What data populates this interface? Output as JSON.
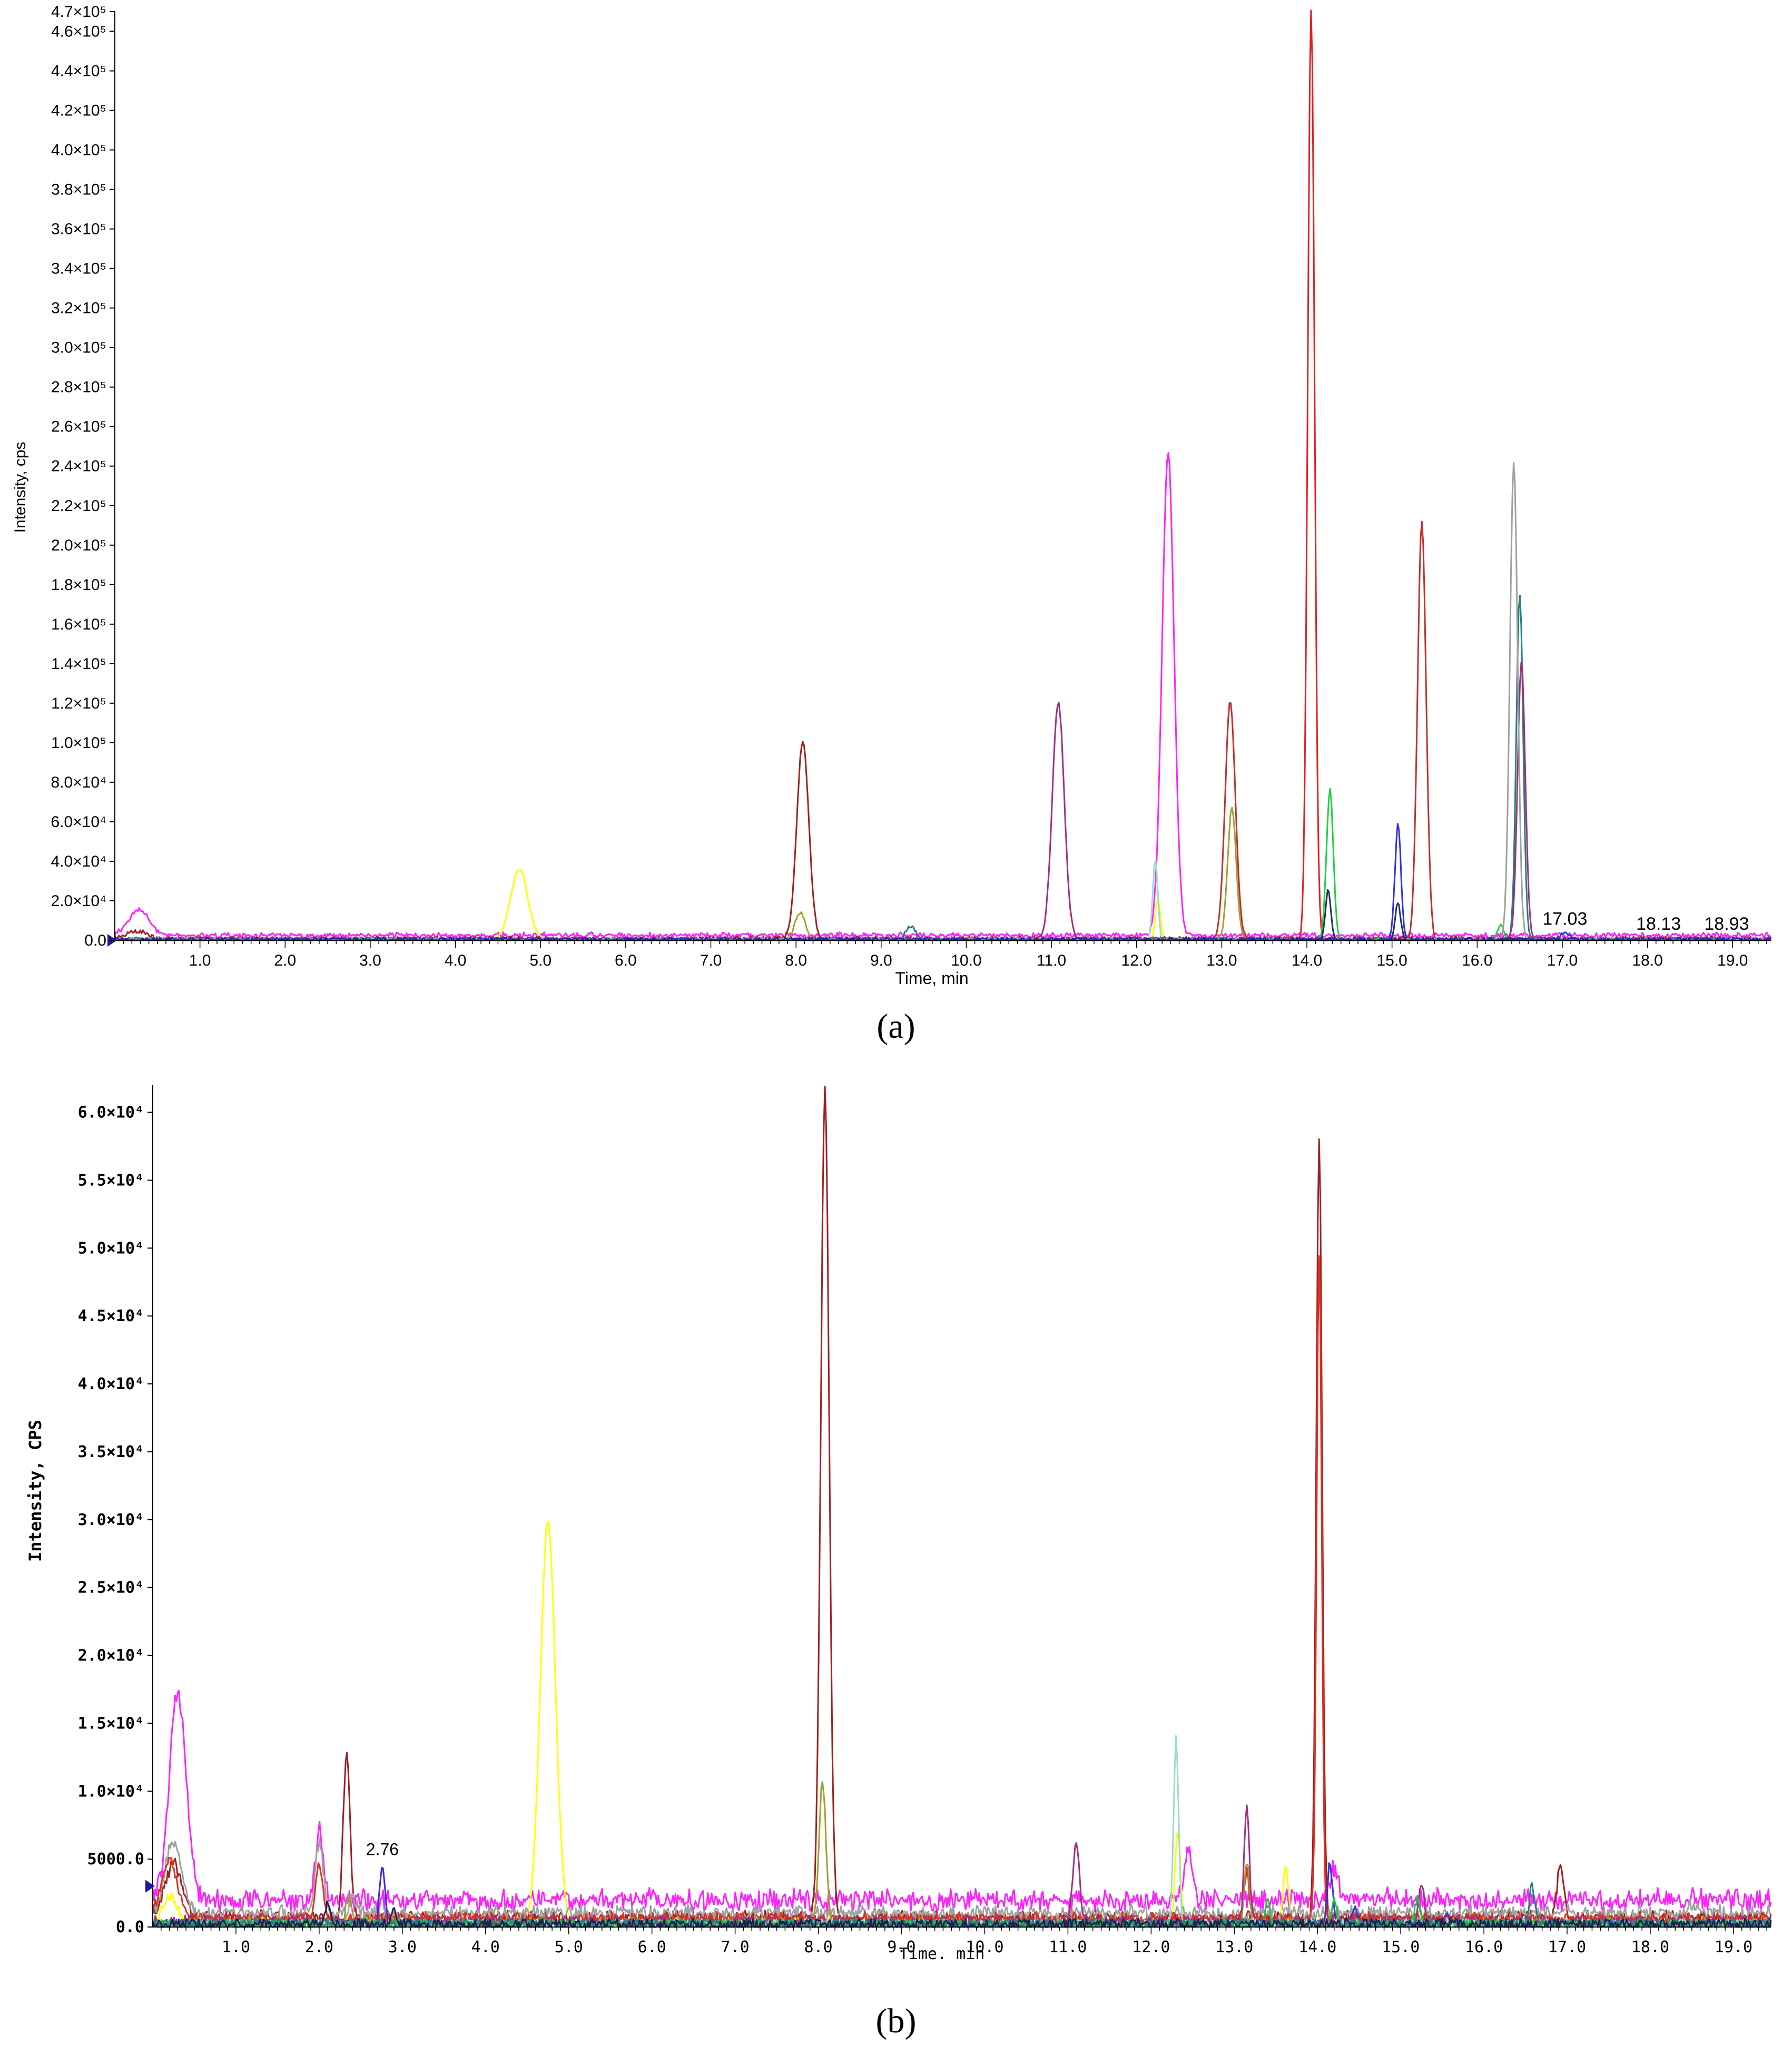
{
  "chart_data": [
    {
      "type": "line",
      "panel_label": "(a)",
      "xlabel": "Time, min",
      "ylabel": "Intensity, cps",
      "xlim": [
        0,
        19.45
      ],
      "ylim": [
        0,
        470000
      ],
      "x_ticks": [
        {
          "v": 1,
          "label": "1.0"
        },
        {
          "v": 2,
          "label": "2.0"
        },
        {
          "v": 3,
          "label": "3.0"
        },
        {
          "v": 4,
          "label": "4.0"
        },
        {
          "v": 5,
          "label": "5.0"
        },
        {
          "v": 6,
          "label": "6.0"
        },
        {
          "v": 7,
          "label": "7.0"
        },
        {
          "v": 8,
          "label": "8.0"
        },
        {
          "v": 9,
          "label": "9.0"
        },
        {
          "v": 10,
          "label": "10.0"
        },
        {
          "v": 11,
          "label": "11.0"
        },
        {
          "v": 12,
          "label": "12.0"
        },
        {
          "v": 13,
          "label": "13.0"
        },
        {
          "v": 14,
          "label": "14.0"
        },
        {
          "v": 15,
          "label": "15.0"
        },
        {
          "v": 16,
          "label": "16.0"
        },
        {
          "v": 17,
          "label": "17.0"
        },
        {
          "v": 18,
          "label": "18.0"
        },
        {
          "v": 19,
          "label": "19.0"
        }
      ],
      "y_ticks": [
        {
          "v": 0,
          "label": "0.0"
        },
        {
          "v": 20000,
          "label": "2.0×10⁴"
        },
        {
          "v": 40000,
          "label": "4.0×10⁴"
        },
        {
          "v": 60000,
          "label": "6.0×10⁴"
        },
        {
          "v": 80000,
          "label": "8.0×10⁴"
        },
        {
          "v": 100000,
          "label": "1.0×10⁵"
        },
        {
          "v": 120000,
          "label": "1.2×10⁵"
        },
        {
          "v": 140000,
          "label": "1.4×10⁵"
        },
        {
          "v": 160000,
          "label": "1.6×10⁵"
        },
        {
          "v": 180000,
          "label": "1.8×10⁵"
        },
        {
          "v": 200000,
          "label": "2.0×10⁵"
        },
        {
          "v": 220000,
          "label": "2.2×10⁵"
        },
        {
          "v": 240000,
          "label": "2.4×10⁵"
        },
        {
          "v": 260000,
          "label": "2.6×10⁵"
        },
        {
          "v": 280000,
          "label": "2.8×10⁵"
        },
        {
          "v": 300000,
          "label": "3.0×10⁵"
        },
        {
          "v": 320000,
          "label": "3.2×10⁵"
        },
        {
          "v": 340000,
          "label": "3.4×10⁵"
        },
        {
          "v": 360000,
          "label": "3.6×10⁵"
        },
        {
          "v": 380000,
          "label": "3.8×10⁵"
        },
        {
          "v": 400000,
          "label": "4.0×10⁵"
        },
        {
          "v": 420000,
          "label": "4.2×10⁵"
        },
        {
          "v": 440000,
          "label": "4.4×10⁵"
        },
        {
          "v": 460000,
          "label": "4.6×10⁵"
        },
        {
          "v": 470000,
          "label": "4.7×10⁵"
        }
      ],
      "annotations": [
        {
          "x": 17.03,
          "y": 3000,
          "text": "17.03"
        },
        {
          "x": 18.13,
          "y": 500,
          "text": "18.13"
        },
        {
          "x": 18.93,
          "y": 500,
          "text": "18.93"
        }
      ],
      "series": [
        {
          "color": "#ff22ff",
          "baseline": 2500,
          "peaks": [
            [
              0.28,
              13000,
              0.12
            ],
            [
              12.37,
              245000,
              0.07
            ]
          ]
        },
        {
          "color": "#ffff00",
          "baseline": 200,
          "peaks": [
            [
              4.75,
              36000,
              0.1
            ],
            [
              12.25,
              21000,
              0.03
            ]
          ]
        },
        {
          "color": "#a02020",
          "baseline": 800,
          "peaks": [
            [
              0.25,
              4000,
              0.12
            ],
            [
              8.08,
              100000,
              0.07
            ]
          ]
        },
        {
          "color": "#a0a030",
          "baseline": 300,
          "peaks": [
            [
              8.05,
              14000,
              0.06
            ],
            [
              13.12,
              67000,
              0.05
            ]
          ]
        },
        {
          "color": "#208080",
          "baseline": 200,
          "peaks": [
            [
              9.35,
              7000,
              0.06
            ],
            [
              16.5,
              175000,
              0.04
            ]
          ]
        },
        {
          "color": "#a03080",
          "baseline": 500,
          "peaks": [
            [
              11.08,
              120000,
              0.07
            ],
            [
              16.52,
              140000,
              0.045
            ]
          ]
        },
        {
          "color": "#a0d8d0",
          "baseline": 200,
          "peaks": [
            [
              12.22,
              40000,
              0.03
            ]
          ]
        },
        {
          "color": "#c03030",
          "baseline": 500,
          "peaks": [
            [
              13.1,
              120000,
              0.06
            ],
            [
              15.35,
              211000,
              0.05
            ]
          ]
        },
        {
          "color": "#e02020",
          "baseline": 300,
          "peaks": [
            [
              14.05,
              470000,
              0.04
            ]
          ]
        },
        {
          "color": "#20d040",
          "baseline": 200,
          "peaks": [
            [
              14.27,
              76000,
              0.04
            ],
            [
              16.28,
              7000,
              0.04
            ]
          ]
        },
        {
          "color": "#203060",
          "baseline": 200,
          "peaks": [
            [
              14.25,
              26000,
              0.03
            ],
            [
              15.07,
              19000,
              0.03
            ]
          ]
        },
        {
          "color": "#3030e0",
          "baseline": 200,
          "peaks": [
            [
              15.07,
              59000,
              0.035
            ],
            [
              17.03,
              4000,
              0.05
            ]
          ]
        },
        {
          "color": "#a0a0a0",
          "baseline": 200,
          "peaks": [
            [
              16.43,
              242000,
              0.045
            ]
          ]
        },
        {
          "color": "#2020a0",
          "baseline": 300,
          "peaks": []
        }
      ]
    },
    {
      "type": "line",
      "panel_label": "(b)",
      "xlabel": "Time. min",
      "ylabel": "Intensity, CPS",
      "xlim": [
        0,
        19.45
      ],
      "ylim": [
        0,
        62000
      ],
      "x_ticks": [
        {
          "v": 1,
          "label": "1.0"
        },
        {
          "v": 2,
          "label": "2.0"
        },
        {
          "v": 3,
          "label": "3.0"
        },
        {
          "v": 4,
          "label": "4.0"
        },
        {
          "v": 5,
          "label": "5.0"
        },
        {
          "v": 6,
          "label": "6.0"
        },
        {
          "v": 7,
          "label": "7.0"
        },
        {
          "v": 8,
          "label": "8.0"
        },
        {
          "v": 9,
          "label": "9.0"
        },
        {
          "v": 10,
          "label": "10.0"
        },
        {
          "v": 11,
          "label": "11.0"
        },
        {
          "v": 12,
          "label": "12.0"
        },
        {
          "v": 13,
          "label": "13.0"
        },
        {
          "v": 14,
          "label": "14.0"
        },
        {
          "v": 15,
          "label": "15.0"
        },
        {
          "v": 16,
          "label": "16.0"
        },
        {
          "v": 17,
          "label": "17.0"
        },
        {
          "v": 18,
          "label": "18.0"
        },
        {
          "v": 19,
          "label": "19.0"
        }
      ],
      "y_ticks": [
        {
          "v": 0,
          "label": "0.0"
        },
        {
          "v": 5000,
          "label": "5000.0"
        },
        {
          "v": 10000,
          "label": "1.0×10⁴"
        },
        {
          "v": 15000,
          "label": "1.5×10⁴"
        },
        {
          "v": 20000,
          "label": "2.0×10⁴"
        },
        {
          "v": 25000,
          "label": "2.5×10⁴"
        },
        {
          "v": 30000,
          "label": "3.0×10⁴"
        },
        {
          "v": 35000,
          "label": "3.5×10⁴"
        },
        {
          "v": 40000,
          "label": "4.0×10⁴"
        },
        {
          "v": 45000,
          "label": "4.5×10⁴"
        },
        {
          "v": 50000,
          "label": "5.0×10⁴"
        },
        {
          "v": 55000,
          "label": "5.5×10⁴"
        },
        {
          "v": 60000,
          "label": "6.0×10⁴"
        }
      ],
      "annotations": [
        {
          "x": 2.76,
          "y": 4600,
          "text": "2.76"
        }
      ],
      "series": [
        {
          "color": "#ff22ff",
          "baseline": 2000,
          "peaks": [
            [
              0.3,
              15000,
              0.1
            ],
            [
              2.0,
              5000,
              0.05
            ],
            [
              12.45,
              3500,
              0.05
            ],
            [
              14.2,
              2500,
              0.05
            ]
          ]
        },
        {
          "color": "#ffff00",
          "baseline": 300,
          "peaks": [
            [
              0.2,
              2000,
              0.08
            ],
            [
              4.75,
              29500,
              0.09
            ],
            [
              12.32,
              7000,
              0.03
            ],
            [
              13.62,
              4300,
              0.03
            ]
          ]
        },
        {
          "color": "#a02020",
          "baseline": 700,
          "peaks": [
            [
              0.25,
              4000,
              0.1
            ],
            [
              2.33,
              12000,
              0.04
            ],
            [
              8.08,
              61000,
              0.05
            ],
            [
              14.02,
              57000,
              0.035
            ],
            [
              16.92,
              3700,
              0.04
            ]
          ]
        },
        {
          "color": "#a0a0a0",
          "baseline": 1000,
          "peaks": [
            [
              0.25,
              5200,
              0.1
            ],
            [
              2.0,
              5200,
              0.05
            ],
            [
              2.4,
              1000,
              0.04
            ],
            [
              18.5,
              800,
              0.05
            ]
          ]
        },
        {
          "color": "#e03020",
          "baseline": 600,
          "peaks": [
            [
              0.2,
              4200,
              0.1
            ],
            [
              2.0,
              4200,
              0.04
            ],
            [
              13.15,
              3500,
              0.03
            ],
            [
              14.02,
              49000,
              0.03
            ]
          ]
        },
        {
          "color": "#a0a030",
          "baseline": 300,
          "peaks": [
            [
              2.35,
              2000,
              0.03
            ],
            [
              8.05,
              10500,
              0.04
            ],
            [
              13.15,
              4500,
              0.03
            ]
          ]
        },
        {
          "color": "#3030e0",
          "baseline": 200,
          "peaks": [
            [
              2.76,
              4500,
              0.03
            ],
            [
              14.15,
              4500,
              0.03
            ],
            [
              14.45,
              1500,
              0.03
            ],
            [
              15.55,
              1000,
              0.03
            ]
          ]
        },
        {
          "color": "#a03080",
          "baseline": 400,
          "peaks": [
            [
              11.1,
              5600,
              0.04
            ],
            [
              15.25,
              2800,
              0.03
            ],
            [
              13.15,
              8500,
              0.03
            ]
          ]
        },
        {
          "color": "#a0d8d0",
          "baseline": 200,
          "peaks": [
            [
              12.3,
              13500,
              0.03
            ]
          ]
        },
        {
          "color": "#20c040",
          "baseline": 200,
          "peaks": [
            [
              13.4,
              1500,
              0.03
            ],
            [
              14.2,
              1600,
              0.03
            ],
            [
              15.2,
              2000,
              0.03
            ]
          ]
        },
        {
          "color": "#208080",
          "baseline": 200,
          "peaks": [
            [
              16.58,
              3000,
              0.03
            ]
          ]
        },
        {
          "color": "#202050",
          "baseline": 200,
          "peaks": [
            [
              2.1,
              1500,
              0.03
            ],
            [
              2.9,
              1000,
              0.03
            ]
          ]
        }
      ]
    }
  ]
}
